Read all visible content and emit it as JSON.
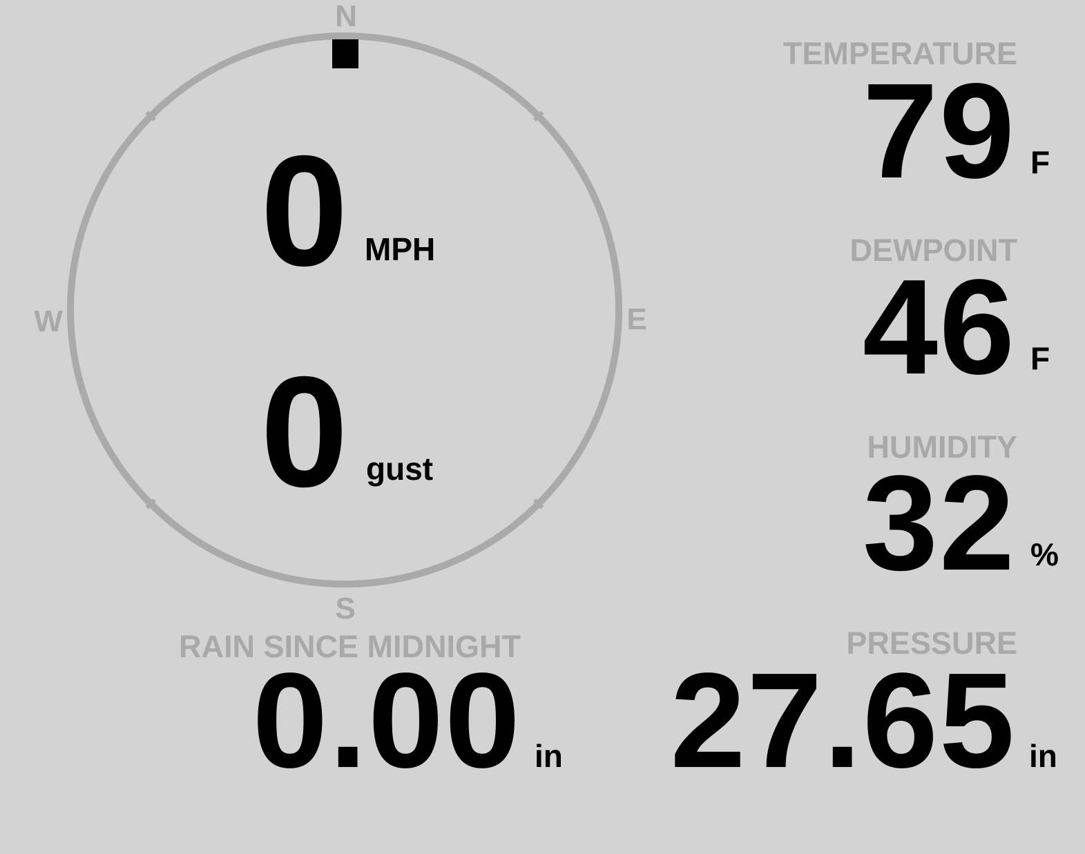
{
  "compass": {
    "north": "N",
    "south": "S",
    "east": "E",
    "west": "W",
    "wind_direction_deg": 0,
    "ring_color": "#aaaaaa"
  },
  "wind": {
    "speed": "0",
    "speed_unit": "MPH",
    "gust": "0",
    "gust_unit": "gust"
  },
  "temperature": {
    "label": "TEMPERATURE",
    "value": "79",
    "unit": "F"
  },
  "dewpoint": {
    "label": "DEWPOINT",
    "value": "46",
    "unit": "F"
  },
  "humidity": {
    "label": "HUMIDITY",
    "value": "32",
    "unit": "%"
  },
  "pressure": {
    "label": "PRESSURE",
    "value": "27.65",
    "unit": "in"
  },
  "rain": {
    "label": "RAIN SINCE MIDNIGHT",
    "value": "0.00",
    "unit": "in"
  }
}
